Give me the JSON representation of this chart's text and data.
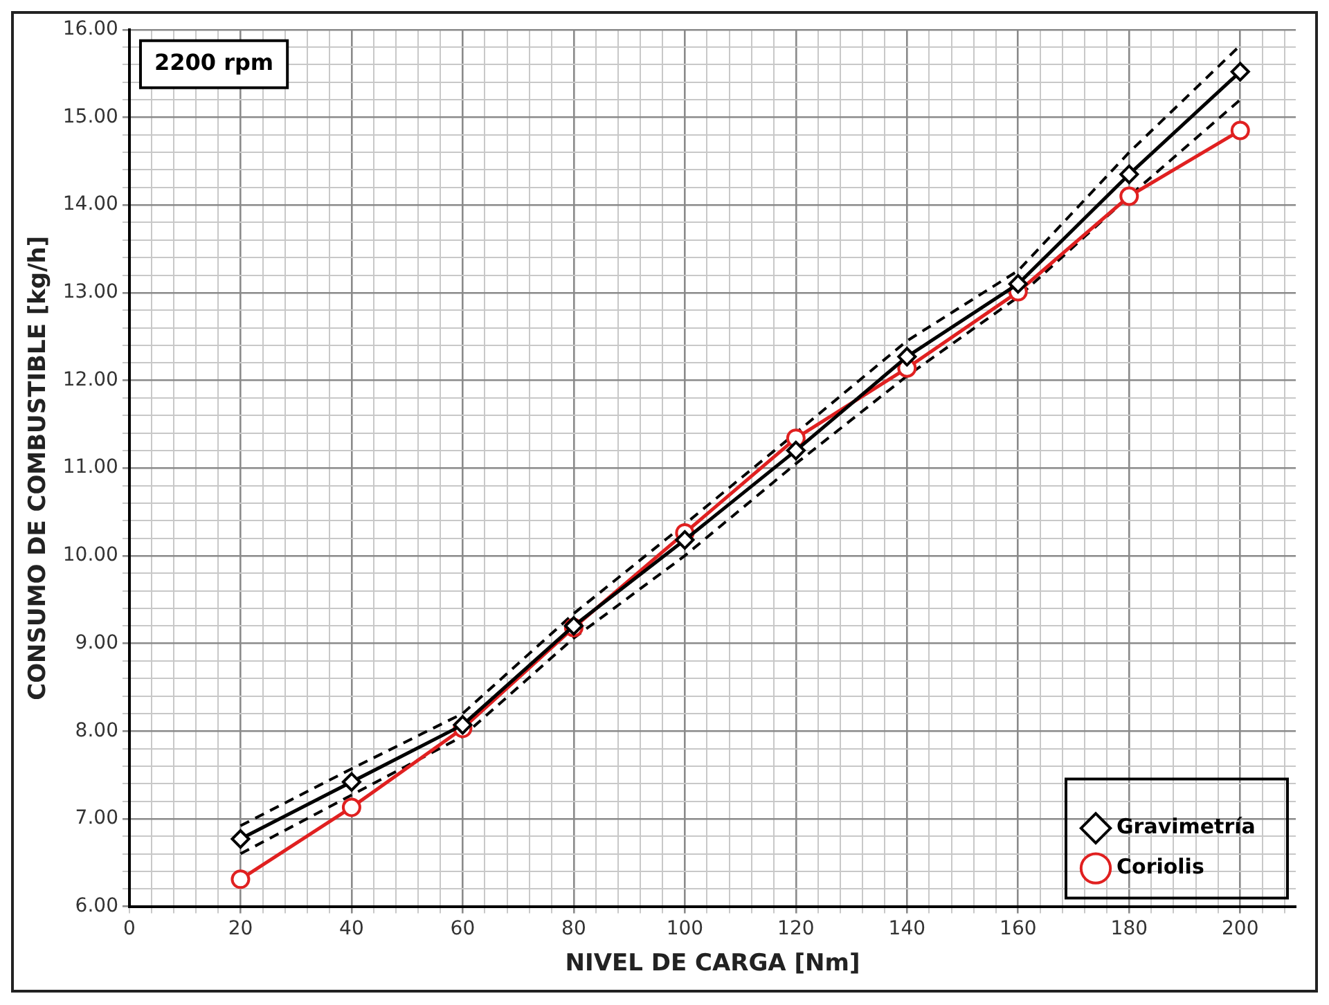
{
  "chart_data": {
    "type": "line",
    "xlabel": "NIVEL DE CARGA [Nm]",
    "ylabel": "CONSUMO DE COMBUSTIBLE [kg/h]",
    "annotations": [
      "2200 rpm"
    ],
    "x": [
      20,
      40,
      60,
      80,
      100,
      120,
      140,
      160,
      180,
      200
    ],
    "series": [
      {
        "name": "Coriolis",
        "color": "#e02020",
        "marker": "circle",
        "values": [
          6.31,
          7.13,
          8.03,
          9.18,
          10.26,
          11.34,
          12.14,
          13.01,
          14.1,
          14.85
        ]
      },
      {
        "name": "Gravimetría",
        "color": "#000000",
        "marker": "diamond",
        "values": [
          6.77,
          7.42,
          8.07,
          9.2,
          10.18,
          11.2,
          12.27,
          13.1,
          14.35,
          15.52
        ]
      },
      {
        "type": "line",
        "color": "#000000",
        "marker": "none",
        "line_style": "dashed",
        "values": [
          6.6,
          7.27,
          7.94,
          9.06,
          10.0,
          11.05,
          12.05,
          12.95,
          14.1,
          15.2
        ]
      },
      {
        "type": "line",
        "color": "#000000",
        "marker": "none",
        "line_style": "dashed",
        "values": [
          6.92,
          7.57,
          8.2,
          9.34,
          10.36,
          11.4,
          12.45,
          13.25,
          14.6,
          15.82
        ]
      }
    ],
    "xlim": [
      0,
      210
    ],
    "ylim": [
      6,
      16
    ],
    "xticks": [
      0,
      {
        "value": 4,
        "label": null
      },
      {
        "value": 8,
        "label": null
      },
      {
        "value": 12,
        "label": null
      },
      {
        "value": 16,
        "label": null
      },
      20,
      {
        "value": 24,
        "label": null
      },
      {
        "value": 28,
        "label": null
      },
      {
        "value": 32,
        "label": null
      },
      {
        "value": 36,
        "label": null
      },
      40,
      {
        "value": 44,
        "label": null
      },
      {
        "value": 48,
        "label": null
      },
      {
        "value": 52,
        "label": null
      },
      {
        "value": 56,
        "label": null
      },
      60,
      {
        "value": 64,
        "label": null
      },
      {
        "value": 68,
        "label": null
      },
      {
        "value": 72,
        "label": null
      },
      {
        "value": 76,
        "label": null
      },
      80,
      {
        "value": 84,
        "label": null
      },
      {
        "value": 88,
        "label": null
      },
      {
        "value": 92,
        "label": null
      },
      {
        "value": 96,
        "label": null
      },
      100,
      {
        "value": 104,
        "label": null
      },
      {
        "value": 108,
        "label": null
      },
      {
        "value": 112,
        "label": null
      },
      {
        "value": 116,
        "label": null
      },
      120,
      {
        "value": 124,
        "label": null
      },
      {
        "value": 128,
        "label": null
      },
      {
        "value": 132,
        "label": null
      },
      {
        "value": 136,
        "label": null
      },
      140,
      {
        "value": 144,
        "label": null
      },
      {
        "value": 148,
        "label": null
      },
      {
        "value": 152,
        "label": null
      },
      {
        "value": 156,
        "label": null
      },
      160,
      {
        "value": 164,
        "label": null
      },
      {
        "value": 168,
        "label": null
      },
      {
        "value": 172,
        "label": null
      },
      {
        "value": 176,
        "label": null
      },
      180,
      {
        "value": 184,
        "label": null
      },
      {
        "value": 188,
        "label": null
      },
      {
        "value": 192,
        "label": null
      },
      {
        "value": 196,
        "label": null
      },
      200,
      {
        "value": 204,
        "label": null
      },
      {
        "value": 208,
        "label": null
      }
    ],
    "yticks": [
      {
        "value": 6,
        "label": "6.00"
      },
      {
        "value": 6.2,
        "label": null
      },
      {
        "value": 6.4,
        "label": null
      },
      {
        "value": 6.6,
        "label": null
      },
      {
        "value": 6.8,
        "label": null
      },
      {
        "value": 7,
        "label": "7.00"
      },
      {
        "value": 7.2,
        "label": null
      },
      {
        "value": 7.4,
        "label": null
      },
      {
        "value": 7.6,
        "label": null
      },
      {
        "value": 7.8,
        "label": null
      },
      {
        "value": 8,
        "label": "8.00"
      },
      {
        "value": 8.2,
        "label": null
      },
      {
        "value": 8.4,
        "label": null
      },
      {
        "value": 8.6,
        "label": null
      },
      {
        "value": 8.8,
        "label": null
      },
      {
        "value": 9,
        "label": "9.00"
      },
      {
        "value": 9.2,
        "label": null
      },
      {
        "value": 9.4,
        "label": null
      },
      {
        "value": 9.6,
        "label": null
      },
      {
        "value": 9.8,
        "label": null
      },
      {
        "value": 10,
        "label": "10.00"
      },
      {
        "value": 10.2,
        "label": null
      },
      {
        "value": 10.4,
        "label": null
      },
      {
        "value": 10.6,
        "label": null
      },
      {
        "value": 10.8,
        "label": null
      },
      {
        "value": 11,
        "label": "11.00"
      },
      {
        "value": 11.2,
        "label": null
      },
      {
        "value": 11.4,
        "label": null
      },
      {
        "value": 11.6,
        "label": null
      },
      {
        "value": 11.8,
        "label": null
      },
      {
        "value": 12,
        "label": "12.00"
      },
      {
        "value": 12.2,
        "label": null
      },
      {
        "value": 12.4,
        "label": null
      },
      {
        "value": 12.6,
        "label": null
      },
      {
        "value": 12.8,
        "label": null
      },
      {
        "value": 13,
        "label": "13.00"
      },
      {
        "value": 13.2,
        "label": null
      },
      {
        "value": 13.4,
        "label": null
      },
      {
        "value": 13.6,
        "label": null
      },
      {
        "value": 13.8,
        "label": null
      },
      {
        "value": 14,
        "label": "14.00"
      },
      {
        "value": 14.2,
        "label": null
      },
      {
        "value": 14.4,
        "label": null
      },
      {
        "value": 14.6,
        "label": null
      },
      {
        "value": 14.8,
        "label": null
      },
      {
        "value": 15,
        "label": "15.00"
      },
      {
        "value": 15.2,
        "label": null
      },
      {
        "value": 15.4,
        "label": null
      },
      {
        "value": 15.6,
        "label": null
      },
      {
        "value": 15.8,
        "label": null
      },
      {
        "value": 16,
        "label": "16.00"
      }
    ],
    "grid": true,
    "legend": "bottom right",
    "line_style": "solid"
  }
}
